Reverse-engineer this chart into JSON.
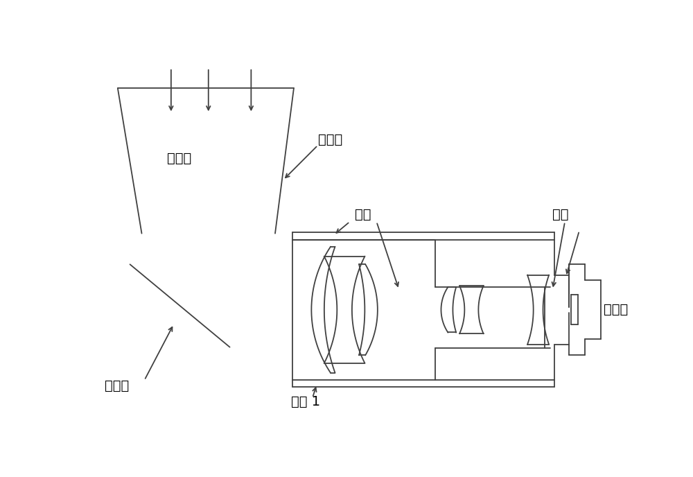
{
  "bg_color": "#ffffff",
  "line_color": "#404040",
  "text_color": "#000000",
  "font_size": 14,
  "lw": 1.3,
  "labels": {
    "ruguang": "入光口",
    "zheguangzhao": "遮光罩",
    "jingtong": "镜筒",
    "lengping": "冷屏",
    "toujing": "透镜 1",
    "fasheijing": "反射镜",
    "tancheqi": "探测器"
  }
}
